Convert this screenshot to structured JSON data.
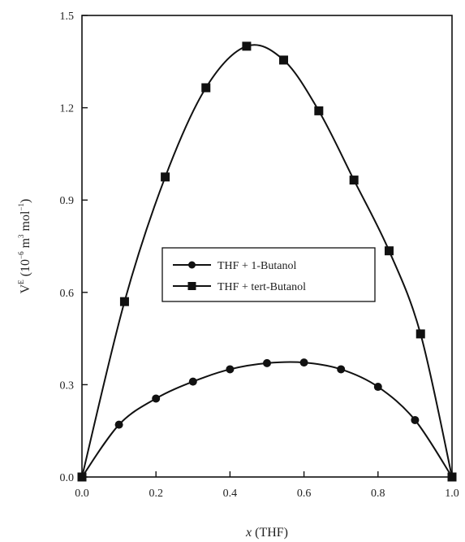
{
  "chart_data": {
    "type": "line",
    "xlabel_italic": "x",
    "xlabel_rest": " (THF)",
    "ylabel_parts": {
      "base": "V",
      "base_sup": "E",
      "open": " (10",
      "exp": "−6",
      "mid": "  m",
      "m_sup": "3",
      "mol": " mol",
      "mol_sup": "−1",
      "close": ")"
    },
    "xlim": [
      0,
      1
    ],
    "ylim": [
      0,
      1.5
    ],
    "x_ticks": [
      "0.0",
      "0.2",
      "0.4",
      "0.6",
      "0.8",
      "1.0"
    ],
    "y_ticks": [
      "0.0",
      "0.3",
      "0.6",
      "0.9",
      "1.2",
      "1.5"
    ],
    "x_tick_values": [
      0,
      0.2,
      0.4,
      0.6,
      0.8,
      1.0
    ],
    "y_tick_values": [
      0,
      0.3,
      0.6,
      0.9,
      1.2,
      1.5
    ],
    "grid": false,
    "legend_position": "center",
    "series": [
      {
        "name": "THF + 1-Butanol",
        "marker": "circle",
        "x": [
          0.0,
          0.1,
          0.2,
          0.3,
          0.4,
          0.5,
          0.6,
          0.7,
          0.8,
          0.9,
          1.0
        ],
        "y": [
          0.0,
          0.17,
          0.255,
          0.31,
          0.35,
          0.37,
          0.372,
          0.35,
          0.293,
          0.185,
          0.0
        ]
      },
      {
        "name": "THF + tert-Butanol",
        "marker": "square",
        "x": [
          0.0,
          0.115,
          0.225,
          0.335,
          0.445,
          0.545,
          0.64,
          0.735,
          0.83,
          0.915,
          1.0
        ],
        "y": [
          0.0,
          0.57,
          0.975,
          1.265,
          1.4,
          1.355,
          1.19,
          0.965,
          0.735,
          0.465,
          0.0
        ]
      }
    ]
  }
}
